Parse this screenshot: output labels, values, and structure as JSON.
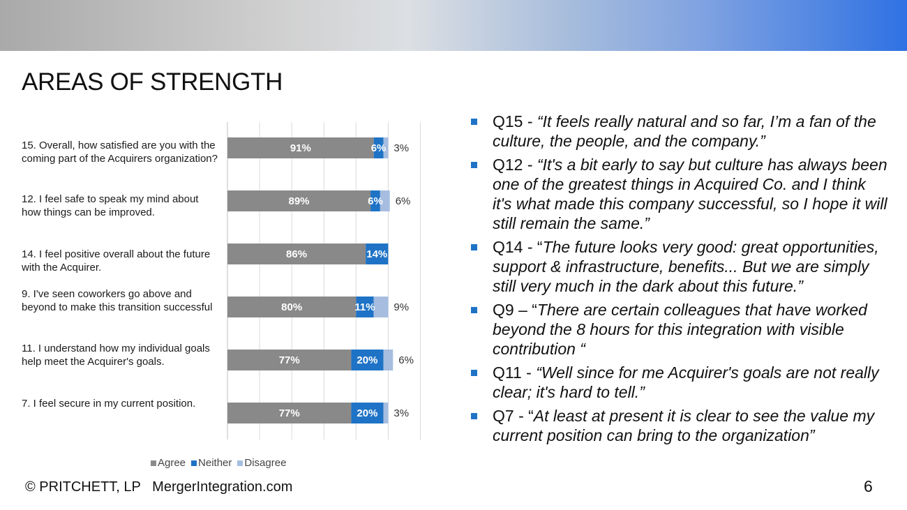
{
  "colors": {
    "agree": "#898989",
    "neither": "#1f73c6",
    "disagree": "#a6bde0",
    "accent_bullet": "#1f73c6"
  },
  "title": "AREAS OF STRENGTH",
  "chart_data": {
    "type": "bar",
    "orientation": "horizontal",
    "stacked": true,
    "categories": [
      "15. Overall, how satisfied are you with the coming part of the Acquirers organization?",
      "12. I feel safe to speak my mind about how things can be improved.",
      "14. I feel positive overall about the future with the Acquirer.",
      "9. I've seen coworkers go above and beyond to make this transition successful",
      "11. I understand how my individual goals help meet the Acquirer's goals.",
      "7. I feel secure in my current position."
    ],
    "series": [
      {
        "name": "Agree",
        "values": [
          91,
          89,
          86,
          80,
          77,
          77
        ],
        "labels": [
          "91%",
          "89%",
          "86%",
          "80%",
          "77%",
          "77%"
        ]
      },
      {
        "name": "Neither",
        "values": [
          6,
          6,
          14,
          11,
          20,
          20
        ],
        "labels": [
          "6%",
          "6%",
          "14%",
          "11%",
          "20%",
          "20%"
        ]
      },
      {
        "name": "Disagree",
        "values": [
          3,
          6,
          0,
          9,
          6,
          3
        ],
        "labels": [
          "3%",
          "6%",
          "",
          "9%",
          "6%",
          "3%"
        ]
      }
    ],
    "xlim": [
      0,
      125
    ],
    "grid": true,
    "legend": "bottom"
  },
  "quotes": [
    {
      "prefix": "Q15 - ",
      "text": "“It feels really natural and so far, I’m a fan of the culture, the people, and the company.”"
    },
    {
      "prefix": "Q12 - ",
      "text": "“It's a bit early to say but culture has always been one of the greatest things in Acquired Co. and I think it's what made this company successful, so I hope it will still remain the same.”"
    },
    {
      "prefix": "Q14 - “",
      "text": "The future looks very good: great opportunities, support & infrastructure, benefits... But we are simply still very much in the dark about this future.”"
    },
    {
      "prefix": "Q9 – “",
      "text": "There are certain colleagues that have worked beyond the 8 hours for this integration with visible contribution “"
    },
    {
      "prefix": "Q11 - ",
      "text": "“Well since for me Acquirer's goals are not really clear; it's hard to tell.”"
    },
    {
      "prefix": "Q7  - “",
      "text": "At least at present it is clear to see the value my current position can bring to the organization”"
    }
  ],
  "footer": "© PRITCHETT, LP   MergerIntegration.com",
  "page_number": "6"
}
